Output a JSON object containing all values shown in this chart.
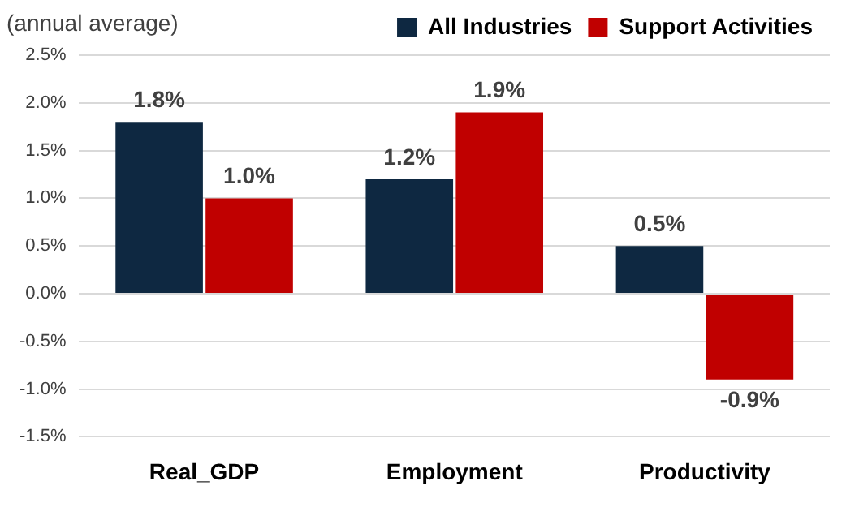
{
  "chart_data": {
    "type": "bar",
    "ylabel": "(annual average)",
    "categories": [
      "Real_GDP",
      "Employment",
      "Productivity"
    ],
    "series": [
      {
        "name": "All Industries",
        "color": "#0e2841",
        "values": [
          1.8,
          1.2,
          0.5
        ],
        "value_labels": [
          "1.8%",
          "1.2%",
          "0.5%"
        ]
      },
      {
        "name": "Support Activities",
        "color": "#c00000",
        "values": [
          1.0,
          1.9,
          -0.9
        ],
        "value_labels": [
          "1.0%",
          "1.9%",
          "-0.9%"
        ]
      }
    ],
    "ylim": [
      -1.5,
      2.5
    ],
    "yticks": [
      {
        "value": -1.5,
        "label": "-1.5%"
      },
      {
        "value": -1,
        "label": "-1.0%"
      },
      {
        "value": -0.5,
        "label": "-0.5%"
      },
      {
        "value": 0,
        "label": "0.0%"
      },
      {
        "value": 0.5,
        "label": "0.5%"
      },
      {
        "value": 1,
        "label": "1.0%"
      },
      {
        "value": 1.5,
        "label": "1.5%"
      },
      {
        "value": 2,
        "label": "2.0%"
      },
      {
        "value": 2.5,
        "label": "2.5%"
      }
    ],
    "grid": "y",
    "legend": "top right"
  }
}
